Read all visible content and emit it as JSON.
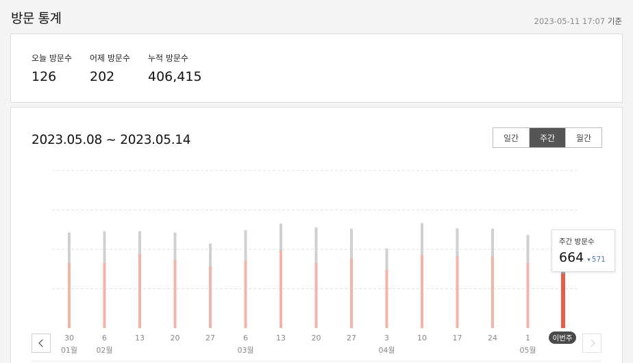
{
  "header": {
    "title": "방문 통계",
    "timestamp": "2023-05-11 17:07",
    "timestamp_suffix": "기준"
  },
  "summary": {
    "today": {
      "label": "오늘 방문수",
      "value": "126"
    },
    "yesterday": {
      "label": "어제 방문수",
      "value": "202"
    },
    "total": {
      "label": "누적 방문수",
      "value": "406,415"
    }
  },
  "chart_panel": {
    "date_range": "2023.05.08 ~ 2023.05.14",
    "tabs": [
      {
        "label": "일간",
        "active": false
      },
      {
        "label": "주간",
        "active": true
      },
      {
        "label": "월간",
        "active": false
      }
    ],
    "tooltip": {
      "label": "주간 방문수",
      "value": "664",
      "previous": "571"
    },
    "current_badge": "이번주"
  },
  "chart_data": {
    "type": "bar",
    "categories": [
      "30",
      "6",
      "13",
      "20",
      "27",
      "6",
      "13",
      "20",
      "27",
      "3",
      "10",
      "17",
      "24",
      "1",
      "이번주"
    ],
    "month_labels": [
      "01월",
      "02월",
      "",
      "",
      "",
      "03월",
      "",
      "",
      "",
      "04월",
      "",
      "",
      "",
      "05월",
      ""
    ],
    "series": [
      {
        "values": [
          1000,
          1015,
          1015,
          1000,
          885,
          1025,
          1095,
          1055,
          1040,
          835,
          1100,
          1045,
          1040,
          975,
          664
        ]
      },
      {
        "values": [
          680,
          680,
          775,
          715,
          645,
          705,
          815,
          680,
          730,
          615,
          765,
          755,
          755,
          685,
          571
        ]
      }
    ],
    "ylim": [
      0,
      1650
    ],
    "grid": true,
    "colors": {
      "past_total": "#cdd1d3",
      "past_partial": "#f3b3a8",
      "current_total": "#a2a9ae",
      "current_partial": "#e85c4a"
    }
  }
}
